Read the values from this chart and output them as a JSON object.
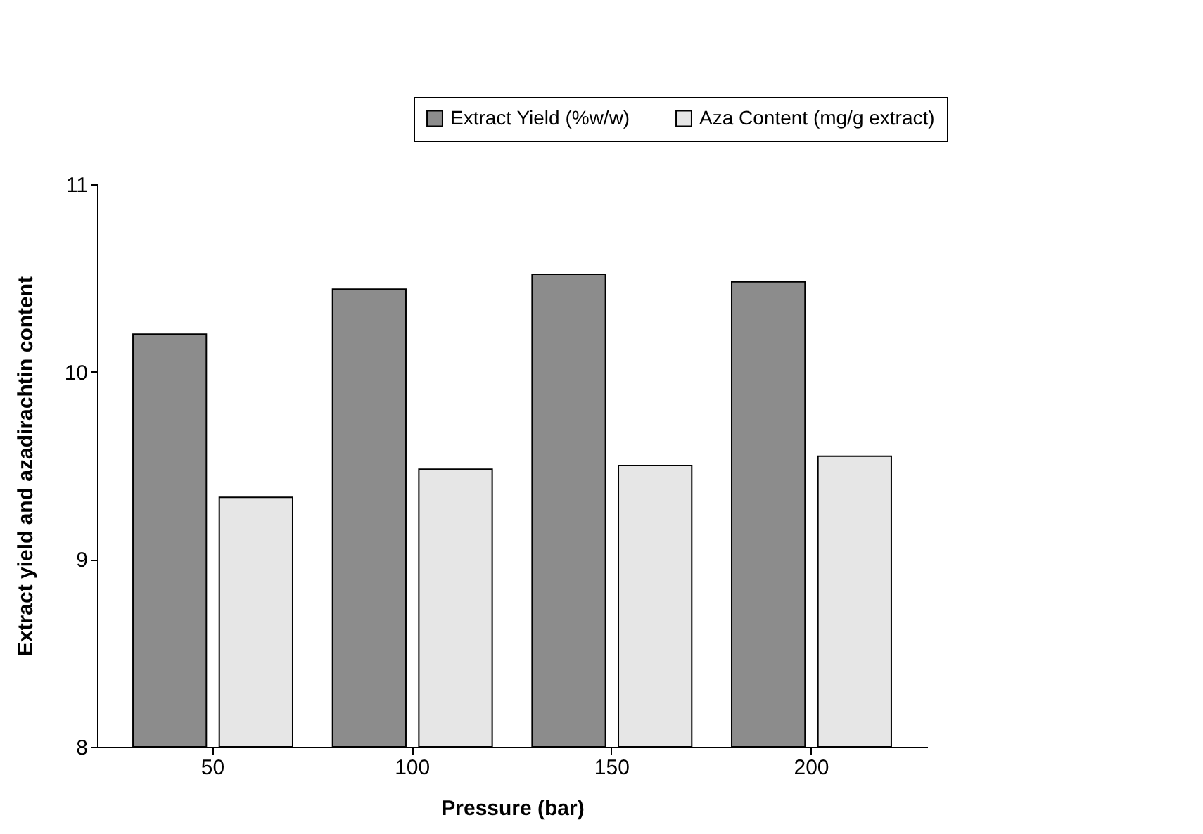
{
  "chart_data": {
    "type": "bar",
    "xlabel": "Pressure (bar)",
    "ylabel": "Extract yield and azadirachtin content",
    "categories": [
      "50",
      "100",
      "150",
      "200"
    ],
    "series": [
      {
        "name": "Extract Yield (%w/w)",
        "color": "#8c8c8c",
        "values": [
          10.2,
          10.44,
          10.52,
          10.48
        ]
      },
      {
        "name": "Aza Content (mg/g extract)",
        "color": "#e6e6e6",
        "values": [
          9.33,
          9.48,
          9.5,
          9.55
        ]
      }
    ],
    "ylim": [
      8,
      11
    ],
    "yticks": [
      8,
      9,
      10,
      11
    ],
    "grid": false,
    "legend": "top right"
  }
}
